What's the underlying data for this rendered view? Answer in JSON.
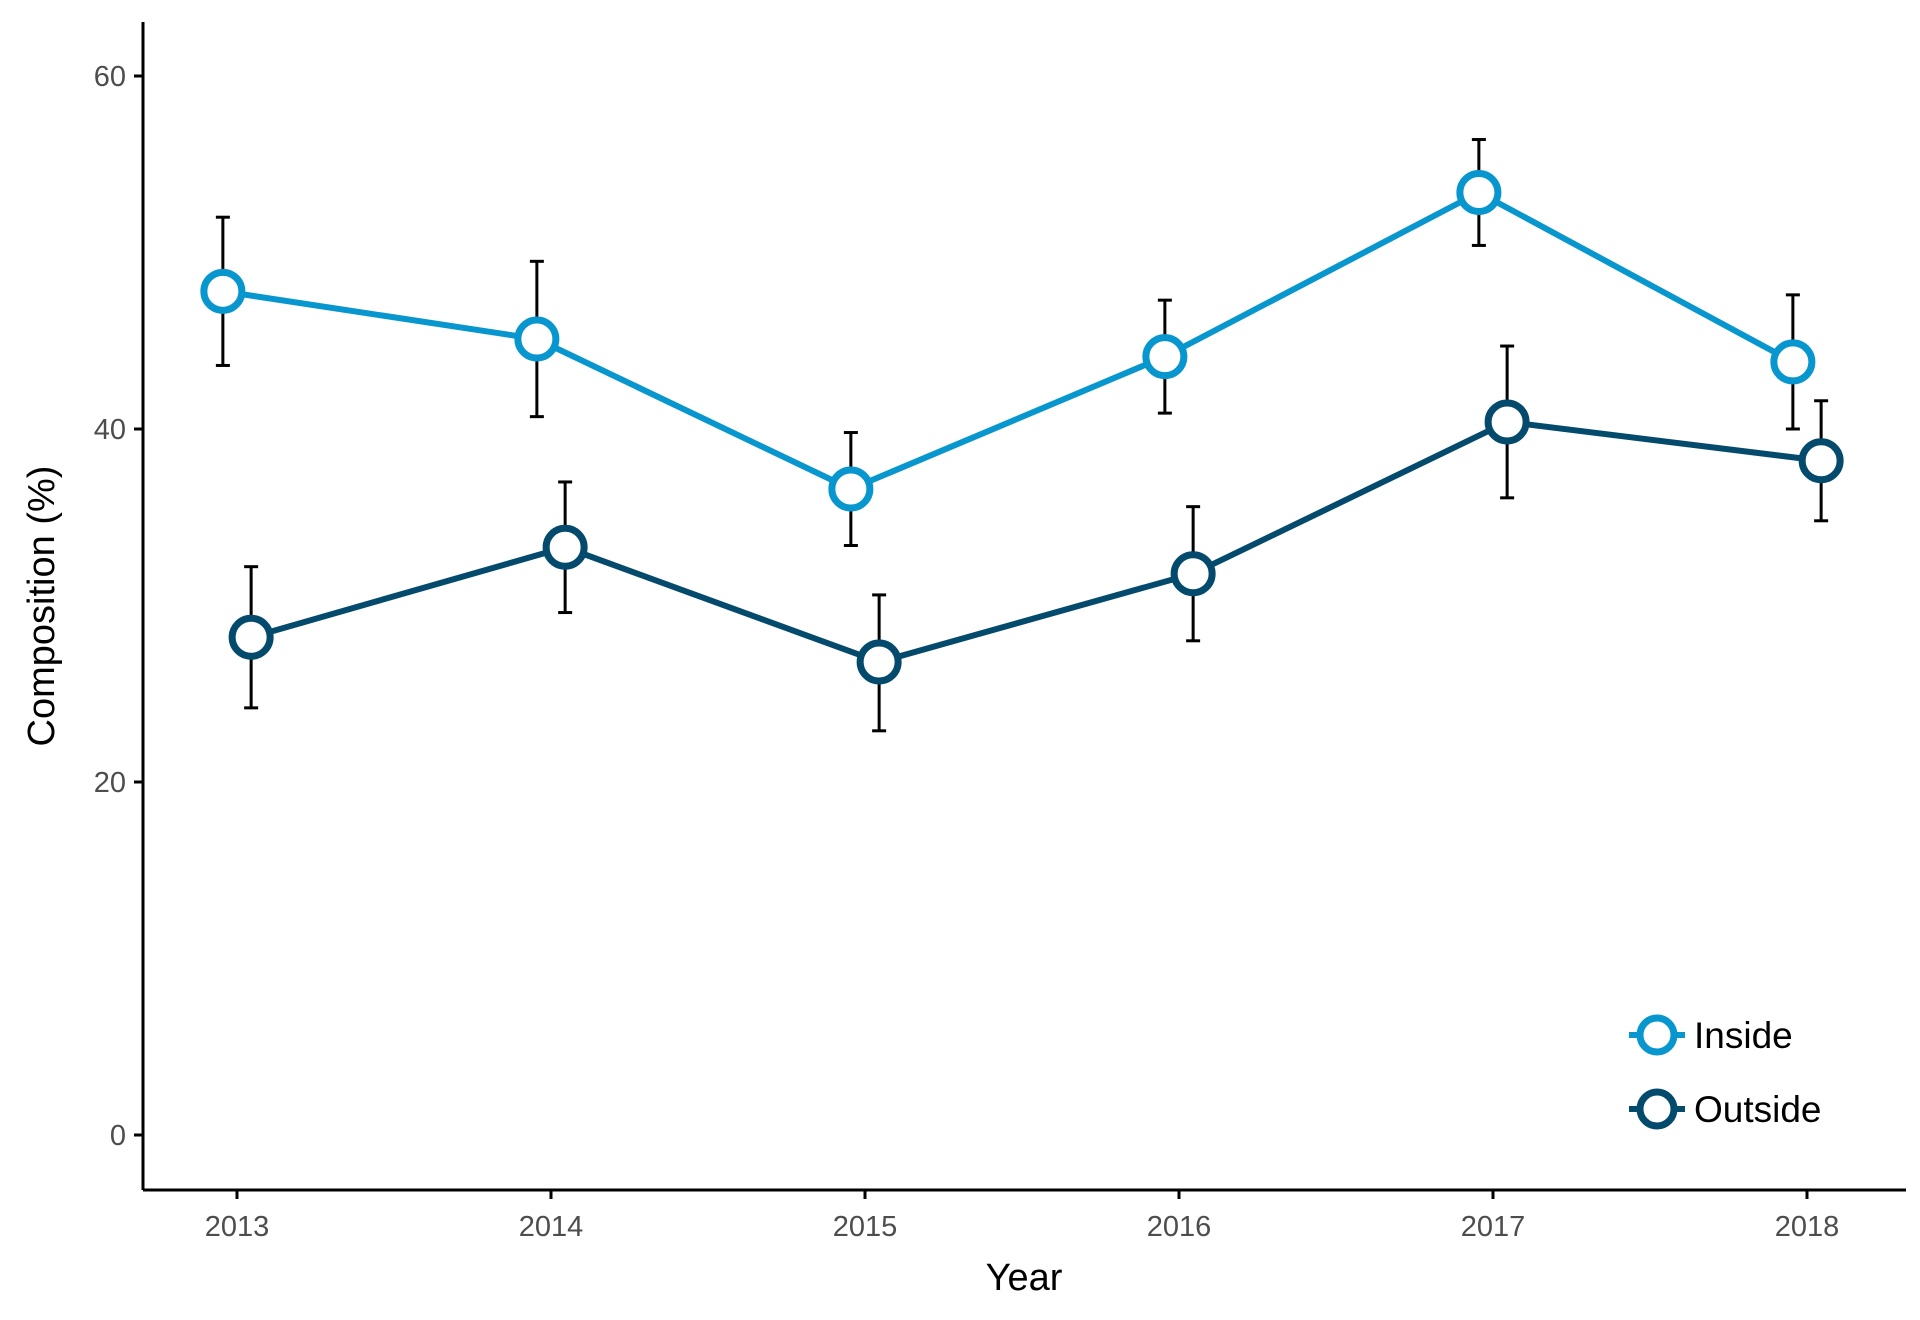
{
  "chart_data": {
    "type": "line",
    "xlabel": "Year",
    "ylabel": "Composition (%)",
    "x": [
      2013,
      2014,
      2015,
      2016,
      2017,
      2018
    ],
    "x_tick_labels": [
      "2013",
      "2014",
      "2015",
      "2016",
      "2017",
      "2018"
    ],
    "y_ticks": [
      0,
      20,
      40,
      60
    ],
    "y_tick_labels": [
      "0",
      "20",
      "40",
      "60"
    ],
    "ylim": [
      -3,
      63
    ],
    "xlim": [
      2012.7,
      2018.3
    ],
    "grid": false,
    "legend_position": "bottom-right",
    "series": [
      {
        "name": "Inside",
        "color": "#0896cf",
        "values": [
          47.8,
          45.1,
          36.6,
          44.1,
          53.4,
          43.8
        ],
        "error_low": [
          43.6,
          40.7,
          33.4,
          40.9,
          50.4,
          40.0
        ],
        "error_high": [
          52.0,
          49.5,
          39.8,
          47.3,
          56.4,
          47.6
        ]
      },
      {
        "name": "Outside",
        "color": "#044a6c",
        "values": [
          28.2,
          33.3,
          26.8,
          31.8,
          40.4,
          38.2
        ],
        "error_low": [
          24.2,
          29.6,
          22.9,
          28.0,
          36.1,
          34.8
        ],
        "error_high": [
          32.2,
          37.0,
          30.6,
          35.6,
          44.7,
          41.6
        ]
      }
    ]
  }
}
